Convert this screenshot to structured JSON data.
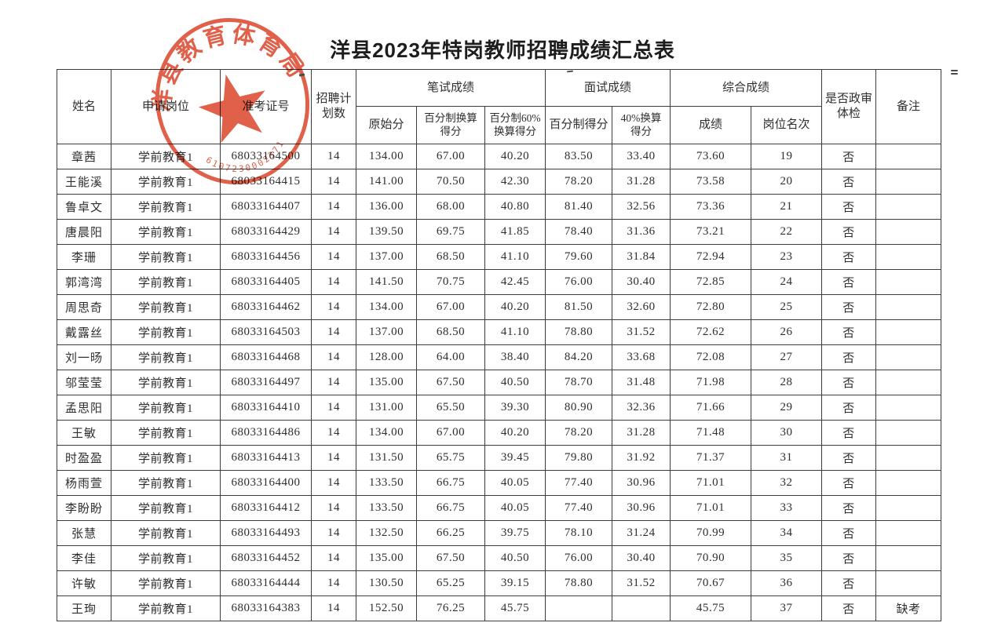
{
  "page": {
    "title": "洋县2023年特岗教师招聘成绩汇总表"
  },
  "colors": {
    "seal_red": "#dc4a30",
    "grid": "#3b3b3b"
  },
  "seal": {
    "name": "洋县教育体育局",
    "code": "6107230002371"
  },
  "table": {
    "headers": {
      "name": "姓名",
      "position": "申请岗位",
      "ticket": "准考证号",
      "plan": "招聘计\n划数",
      "written_group": "笔试成绩",
      "written_raw": "原始分",
      "written_pct": "百分制换算\n得分",
      "written_60": "百分制60%\n换算得分",
      "interview_group": "面试成绩",
      "interview_pct": "百分制得分",
      "interview_40": "40%换算\n得分",
      "overall_group": "综合成绩",
      "overall_score": "成绩",
      "overall_rank": "岗位名次",
      "review": "是否政审\n体检",
      "remarks": "备注"
    },
    "rows": [
      [
        "章茜",
        "学前教育1",
        "68033164500",
        "14",
        "134.00",
        "67.00",
        "40.20",
        "83.50",
        "33.40",
        "73.60",
        "19",
        "否",
        ""
      ],
      [
        "王能溪",
        "学前教育1",
        "68033164415",
        "14",
        "141.00",
        "70.50",
        "42.30",
        "78.20",
        "31.28",
        "73.58",
        "20",
        "否",
        ""
      ],
      [
        "鲁卓文",
        "学前教育1",
        "68033164407",
        "14",
        "136.00",
        "68.00",
        "40.80",
        "81.40",
        "32.56",
        "73.36",
        "21",
        "否",
        ""
      ],
      [
        "唐晨阳",
        "学前教育1",
        "68033164429",
        "14",
        "139.50",
        "69.75",
        "41.85",
        "78.40",
        "31.36",
        "73.21",
        "22",
        "否",
        ""
      ],
      [
        "李珊",
        "学前教育1",
        "68033164456",
        "14",
        "137.00",
        "68.50",
        "41.10",
        "79.60",
        "31.84",
        "72.94",
        "23",
        "否",
        ""
      ],
      [
        "郭湾湾",
        "学前教育1",
        "68033164405",
        "14",
        "141.50",
        "70.75",
        "42.45",
        "76.00",
        "30.40",
        "72.85",
        "24",
        "否",
        ""
      ],
      [
        "周思奇",
        "学前教育1",
        "68033164462",
        "14",
        "134.00",
        "67.00",
        "40.20",
        "81.50",
        "32.60",
        "72.80",
        "25",
        "否",
        ""
      ],
      [
        "戴露丝",
        "学前教育1",
        "68033164503",
        "14",
        "137.00",
        "68.50",
        "41.10",
        "78.80",
        "31.52",
        "72.62",
        "26",
        "否",
        ""
      ],
      [
        "刘一旸",
        "学前教育1",
        "68033164468",
        "14",
        "128.00",
        "64.00",
        "38.40",
        "84.20",
        "33.68",
        "72.08",
        "27",
        "否",
        ""
      ],
      [
        "邬莹莹",
        "学前教育1",
        "68033164497",
        "14",
        "135.00",
        "67.50",
        "40.50",
        "78.70",
        "31.48",
        "71.98",
        "28",
        "否",
        ""
      ],
      [
        "孟思阳",
        "学前教育1",
        "68033164410",
        "14",
        "131.00",
        "65.50",
        "39.30",
        "80.90",
        "32.36",
        "71.66",
        "29",
        "否",
        ""
      ],
      [
        "王敏",
        "学前教育1",
        "68033164486",
        "14",
        "134.00",
        "67.00",
        "40.20",
        "78.20",
        "31.28",
        "71.48",
        "30",
        "否",
        ""
      ],
      [
        "时盈盈",
        "学前教育1",
        "68033164413",
        "14",
        "131.50",
        "65.75",
        "39.45",
        "79.80",
        "31.92",
        "71.37",
        "31",
        "否",
        ""
      ],
      [
        "杨雨萱",
        "学前教育1",
        "68033164400",
        "14",
        "133.50",
        "66.75",
        "40.05",
        "77.40",
        "30.96",
        "71.01",
        "32",
        "否",
        ""
      ],
      [
        "李盼盼",
        "学前教育1",
        "68033164412",
        "14",
        "133.50",
        "66.75",
        "40.05",
        "77.40",
        "30.96",
        "71.01",
        "33",
        "否",
        ""
      ],
      [
        "张慧",
        "学前教育1",
        "68033164493",
        "14",
        "132.50",
        "66.25",
        "39.75",
        "78.10",
        "31.24",
        "70.99",
        "34",
        "否",
        ""
      ],
      [
        "李佳",
        "学前教育1",
        "68033164452",
        "14",
        "135.00",
        "67.50",
        "40.50",
        "76.00",
        "30.40",
        "70.90",
        "35",
        "否",
        ""
      ],
      [
        "许敏",
        "学前教育1",
        "68033164444",
        "14",
        "130.50",
        "65.25",
        "39.15",
        "78.80",
        "31.52",
        "70.67",
        "36",
        "否",
        ""
      ],
      [
        "王珣",
        "学前教育1",
        "68033164383",
        "14",
        "152.50",
        "76.25",
        "45.75",
        "",
        "",
        "45.75",
        "37",
        "否",
        "缺考"
      ]
    ]
  }
}
